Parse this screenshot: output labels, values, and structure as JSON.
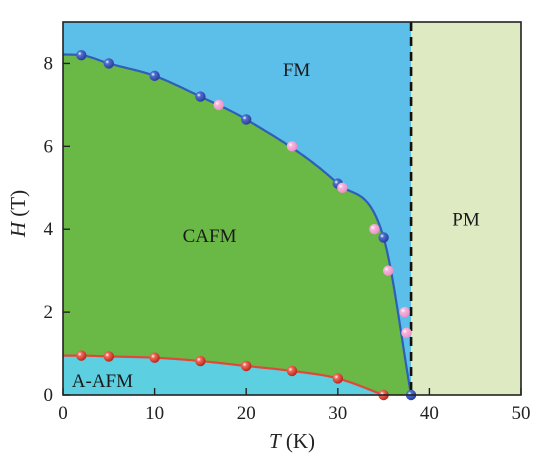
{
  "chart_data": {
    "type": "scatter",
    "xlabel": {
      "var": "T",
      "unit": " (K)"
    },
    "ylabel": {
      "var": "H",
      "unit": " (T)"
    },
    "xlim": [
      0,
      50
    ],
    "ylim": [
      0,
      9
    ],
    "xticks": [
      0,
      10,
      20,
      30,
      40,
      50
    ],
    "yticks": [
      0,
      2,
      4,
      6,
      8
    ],
    "grid": false,
    "legend": "none",
    "transition_T": 38,
    "regions": [
      {
        "label": "FM",
        "color": "#5bbfea",
        "label_x": 25.5,
        "label_y": 7.8
      },
      {
        "label": "CAFM",
        "color": "#6ab845",
        "label_x": 16,
        "label_y": 3.8
      },
      {
        "label": "A-AFM",
        "color": "#5ccfe0",
        "label_x": 4.3,
        "label_y": 0.3
      },
      {
        "label": "PM",
        "color": "#deebc2",
        "label_x": 44,
        "label_y": 4.2
      }
    ],
    "series": [
      {
        "role": "upper-boundary",
        "line_color": "#2f5fb6",
        "marker": "blue",
        "points": [
          [
            2,
            8.2
          ],
          [
            5,
            8.0
          ],
          [
            10,
            7.7
          ],
          [
            15,
            7.2
          ],
          [
            20,
            6.65
          ],
          [
            30,
            5.1
          ],
          [
            35,
            3.8
          ],
          [
            38,
            0.0
          ]
        ]
      },
      {
        "role": "upper-boundary",
        "marker": "pink",
        "points": [
          [
            17,
            7.0
          ],
          [
            25,
            6.0
          ],
          [
            30.5,
            5.0
          ],
          [
            34,
            4.0
          ],
          [
            35.5,
            3.0
          ],
          [
            37.3,
            2.0
          ],
          [
            37.5,
            1.5
          ]
        ]
      },
      {
        "role": "lower-boundary",
        "line_color": "#e0493a",
        "marker": "red",
        "points": [
          [
            2,
            0.95
          ],
          [
            5,
            0.93
          ],
          [
            10,
            0.9
          ],
          [
            15,
            0.82
          ],
          [
            20,
            0.7
          ],
          [
            25,
            0.58
          ],
          [
            30,
            0.4
          ],
          [
            35,
            0.0
          ]
        ]
      }
    ],
    "colors": {
      "blue_marker": "#2b3f9b",
      "pink_marker": "#ee8fc6",
      "red_marker": "#e0493a",
      "divider": "#111111"
    }
  }
}
